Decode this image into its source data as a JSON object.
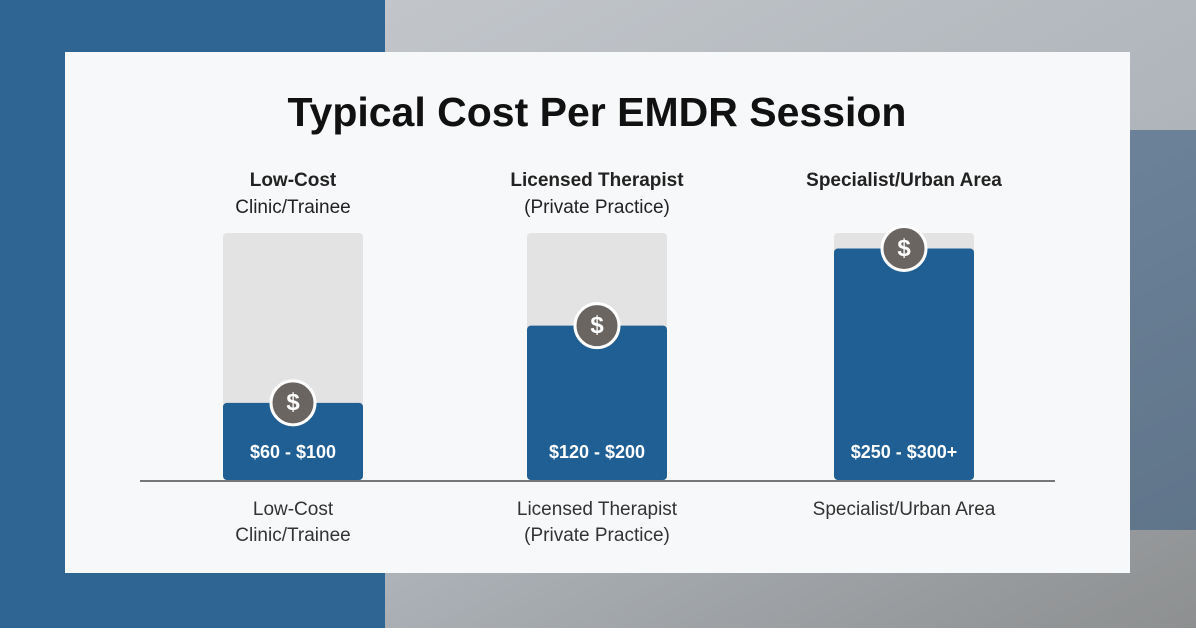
{
  "chart_data": {
    "type": "bar",
    "title": "Typical Cost Per EMDR Session",
    "categories": [
      [
        "Low-Cost",
        "Clinic/Trainee"
      ],
      [
        "Licensed Therapist",
        "(Private Practice)"
      ],
      [
        "Specialist/Urban Area"
      ]
    ],
    "low": [
      60,
      120,
      250
    ],
    "high": [
      100,
      200,
      300
    ],
    "value_labels": [
      "$60 - $100",
      "$120 - $200",
      "$250 - $300+"
    ],
    "icon_label": "$",
    "ylim": [
      0,
      320
    ],
    "color": "#1f5f93",
    "track_color": "#e3e3e3",
    "icon_color": "#6a6560"
  }
}
